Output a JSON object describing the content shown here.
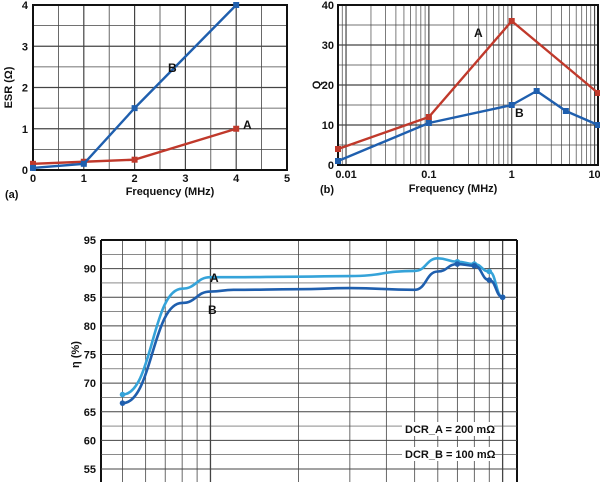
{
  "colors": {
    "A_top": "#c0392b",
    "B_top": "#1f5fae",
    "A_bottom": "#35a3d9",
    "B_bottom": "#1f5fae",
    "grid": "#444444"
  },
  "chart_data": [
    {
      "id": "a",
      "type": "line",
      "panel_label": "(a)",
      "xlabel": "Frequency (MHz)",
      "ylabel": "ESR (Ω)",
      "xlim": [
        0,
        5
      ],
      "ylim": [
        0,
        4
      ],
      "xticks": [
        "0",
        "1",
        "2",
        "3",
        "4",
        "5"
      ],
      "yticks": [
        "0",
        "1",
        "2",
        "3",
        "4"
      ],
      "grid": true,
      "series": [
        {
          "name": "A",
          "x": [
            0,
            1,
            2,
            4
          ],
          "y": [
            0.15,
            0.2,
            0.25,
            1.0
          ]
        },
        {
          "name": "B",
          "x": [
            0,
            1,
            2,
            4
          ],
          "y": [
            0.05,
            0.15,
            1.5,
            4.0
          ]
        }
      ]
    },
    {
      "id": "b",
      "type": "line",
      "panel_label": "(b)",
      "xlabel": "Frequency (MHz)",
      "ylabel": "Q",
      "xscale": "log",
      "xlim": [
        0.008,
        11
      ],
      "ylim": [
        0,
        40
      ],
      "xticks": [
        "0.01",
        "0.1",
        "1",
        "10"
      ],
      "yticks": [
        "0",
        "10",
        "20",
        "30",
        "40"
      ],
      "grid": true,
      "series": [
        {
          "name": "A",
          "x": [
            0.008,
            0.1,
            1,
            11
          ],
          "y": [
            4,
            12,
            36,
            18
          ]
        },
        {
          "name": "B",
          "x": [
            0.008,
            0.1,
            1,
            2,
            4.5,
            11
          ],
          "y": [
            1,
            10.5,
            15,
            18.5,
            13.5,
            10
          ]
        }
      ]
    },
    {
      "id": "c",
      "type": "line",
      "xlabel": "",
      "ylabel": "η (%)",
      "xscale": "log",
      "ylim": [
        52,
        95
      ],
      "yticks": [
        "55",
        "60",
        "65",
        "70",
        "75",
        "80",
        "85",
        "90",
        "95"
      ],
      "grid": true,
      "annotations": [
        "DCR_A = 200 mΩ",
        "DCR_B = 100 mΩ"
      ],
      "series": [
        {
          "name": "A",
          "x": [
            0.05,
            0.08,
            0.1,
            0.12,
            0.2,
            0.3,
            0.5,
            0.6,
            0.7,
            0.8,
            0.9,
            1.0
          ],
          "y": [
            68,
            86.5,
            88.5,
            88.5,
            88.6,
            88.7,
            89.6,
            91.8,
            91.2,
            90.8,
            89.5,
            85
          ]
        },
        {
          "name": "B",
          "x": [
            0.05,
            0.08,
            0.1,
            0.12,
            0.2,
            0.3,
            0.5,
            0.6,
            0.7,
            0.8,
            0.9,
            1.0
          ],
          "y": [
            66.5,
            84,
            86,
            86.3,
            86.4,
            86.6,
            86.3,
            89.5,
            90.8,
            90.5,
            88,
            85
          ]
        }
      ]
    }
  ]
}
